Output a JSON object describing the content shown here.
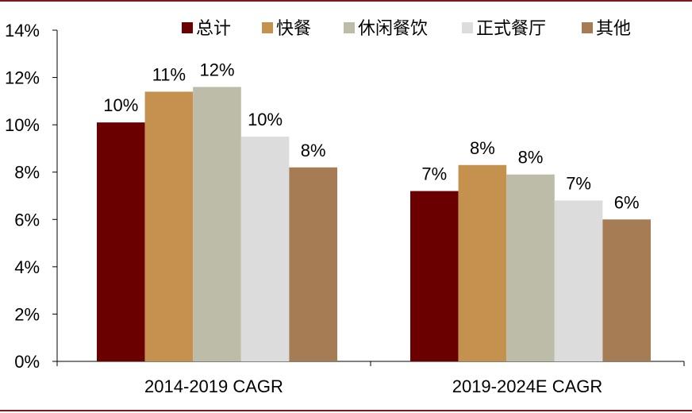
{
  "chart_data": {
    "type": "bar",
    "categories": [
      "2014-2019 CAGR",
      "2019-2024E CAGR"
    ],
    "series": [
      {
        "name": "总计",
        "values": [
          10.1,
          7.2
        ],
        "labels": [
          "10%",
          "7%"
        ],
        "color": "#6b0000"
      },
      {
        "name": "快餐",
        "values": [
          11.4,
          8.3
        ],
        "labels": [
          "11%",
          "8%"
        ],
        "color": "#c4914f"
      },
      {
        "name": "休闲餐饮",
        "values": [
          11.6,
          7.9
        ],
        "labels": [
          "12%",
          "8%"
        ],
        "color": "#bcbca9"
      },
      {
        "name": "正式餐厅",
        "values": [
          9.5,
          6.8
        ],
        "labels": [
          "10%",
          "7%"
        ],
        "color": "#dcdcdc"
      },
      {
        "name": "其他",
        "values": [
          8.2,
          6.0
        ],
        "labels": [
          "8%",
          "6%"
        ],
        "color": "#a67c55"
      }
    ],
    "ylim": [
      0,
      14
    ],
    "yticks": [
      "0%",
      "2%",
      "4%",
      "6%",
      "8%",
      "10%",
      "12%",
      "14%"
    ],
    "legend_position": "top",
    "grid": false,
    "border_color": "#7a1a1a"
  }
}
